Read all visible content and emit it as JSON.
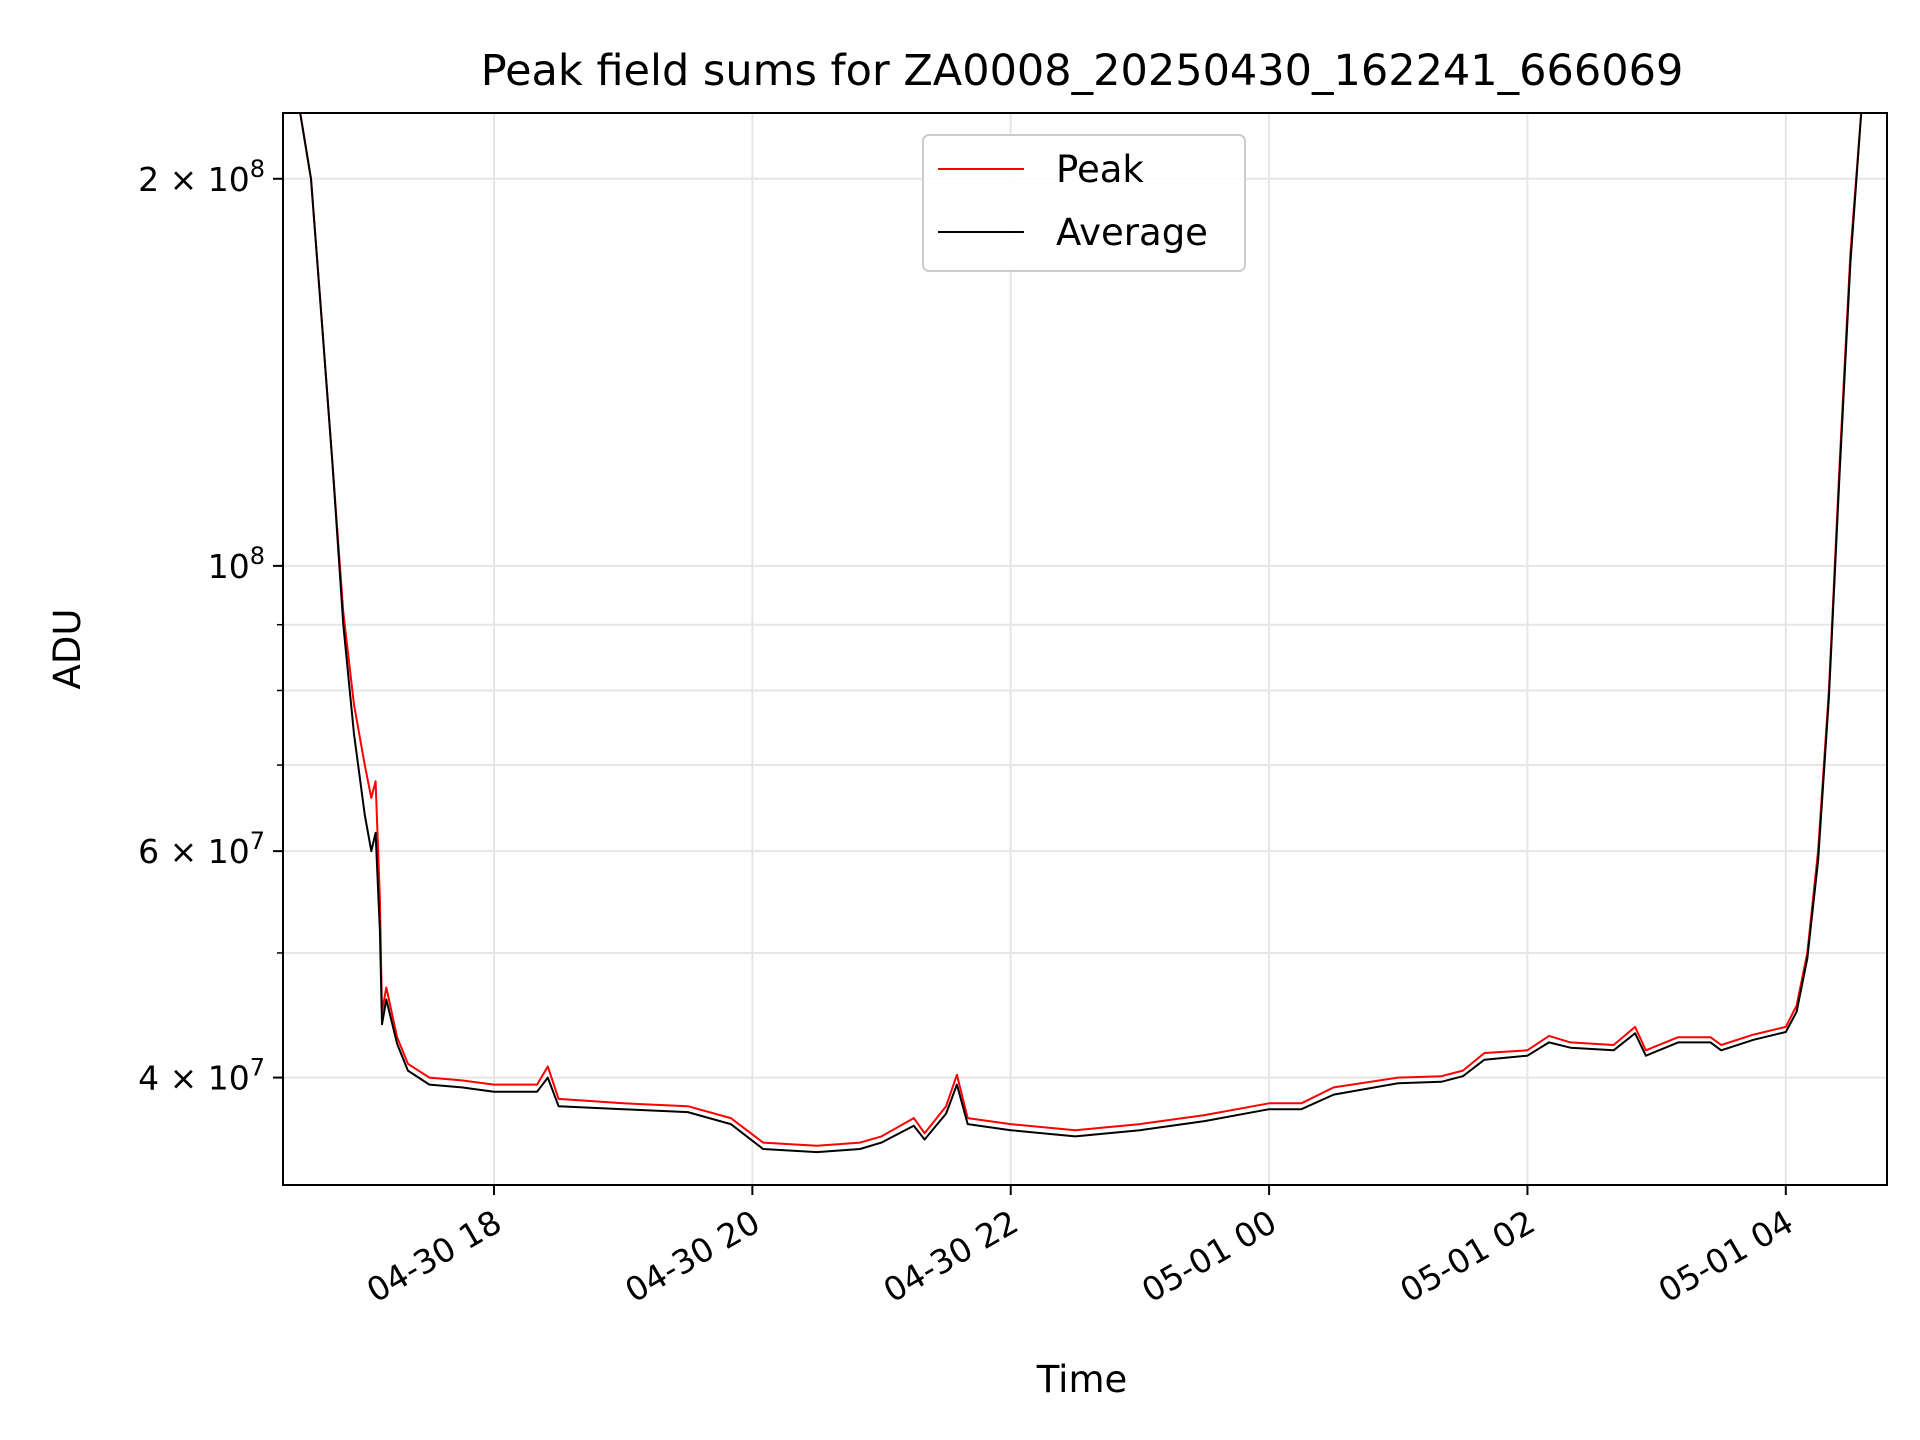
{
  "chart_data": {
    "type": "line",
    "title": "Peak field sums for ZA0008_20250430_162241_666069",
    "xlabel": "Time",
    "ylabel": "ADU",
    "yscale": "log",
    "ylim": [
      33000000,
      225000000
    ],
    "xlim": [
      "2025-04-30 16:22",
      "2025-05-01 04:47"
    ],
    "x_ticks": [
      {
        "t": "2025-04-30 18:00",
        "label": "04-30 18"
      },
      {
        "t": "2025-04-30 20:00",
        "label": "04-30 20"
      },
      {
        "t": "2025-04-30 22:00",
        "label": "04-30 22"
      },
      {
        "t": "2025-05-01 00:00",
        "label": "05-01 00"
      },
      {
        "t": "2025-05-01 02:00",
        "label": "05-01 02"
      },
      {
        "t": "2025-05-01 04:00",
        "label": "05-01 04"
      }
    ],
    "y_ticks": [
      {
        "value": 40000000,
        "mantissa": "4",
        "exp": "7"
      },
      {
        "value": 60000000,
        "mantissa": "6",
        "exp": "7"
      },
      {
        "value": 100000000,
        "mantissa": "",
        "exp": "8"
      },
      {
        "value": 200000000,
        "mantissa": "2",
        "exp": "8"
      }
    ],
    "y_minor_ticks": [
      50000000,
      70000000,
      80000000,
      90000000
    ],
    "grid": true,
    "legend_position": "top-center",
    "series": [
      {
        "name": "Peak",
        "color": "#ff0000",
        "points": [
          [
            "2025-04-30 16:22",
            225000000
          ],
          [
            "2025-04-30 16:30",
            225000000
          ],
          [
            "2025-04-30 16:35",
            200000000
          ],
          [
            "2025-04-30 16:40",
            155000000
          ],
          [
            "2025-04-30 16:45",
            120000000
          ],
          [
            "2025-04-30 16:50",
            92000000
          ],
          [
            "2025-04-30 16:55",
            78000000
          ],
          [
            "2025-04-30 17:00",
            70000000
          ],
          [
            "2025-04-30 17:03",
            66000000
          ],
          [
            "2025-04-30 17:05",
            68000000
          ],
          [
            "2025-04-30 17:07",
            55000000
          ],
          [
            "2025-04-30 17:08",
            45000000
          ],
          [
            "2025-04-30 17:10",
            47000000
          ],
          [
            "2025-04-30 17:15",
            43000000
          ],
          [
            "2025-04-30 17:20",
            41000000
          ],
          [
            "2025-04-30 17:30",
            40000000
          ],
          [
            "2025-04-30 17:45",
            39800000
          ],
          [
            "2025-04-30 18:00",
            39500000
          ],
          [
            "2025-04-30 18:20",
            39500000
          ],
          [
            "2025-04-30 18:25",
            40800000
          ],
          [
            "2025-04-30 18:30",
            38500000
          ],
          [
            "2025-04-30 19:00",
            38200000
          ],
          [
            "2025-04-30 19:30",
            38000000
          ],
          [
            "2025-04-30 19:50",
            37200000
          ],
          [
            "2025-04-30 20:05",
            35600000
          ],
          [
            "2025-04-30 20:30",
            35400000
          ],
          [
            "2025-04-30 20:50",
            35600000
          ],
          [
            "2025-04-30 21:00",
            36000000
          ],
          [
            "2025-04-30 21:15",
            37200000
          ],
          [
            "2025-04-30 21:20",
            36200000
          ],
          [
            "2025-04-30 21:30",
            38000000
          ],
          [
            "2025-04-30 21:35",
            40200000
          ],
          [
            "2025-04-30 21:40",
            37200000
          ],
          [
            "2025-04-30 22:00",
            36800000
          ],
          [
            "2025-04-30 22:30",
            36400000
          ],
          [
            "2025-04-30 23:00",
            36800000
          ],
          [
            "2025-04-30 23:30",
            37400000
          ],
          [
            "2025-05-01 00:00",
            38200000
          ],
          [
            "2025-05-01 00:15",
            38200000
          ],
          [
            "2025-05-01 00:30",
            39300000
          ],
          [
            "2025-05-01 01:00",
            40000000
          ],
          [
            "2025-05-01 01:20",
            40100000
          ],
          [
            "2025-05-01 01:30",
            40500000
          ],
          [
            "2025-05-01 01:40",
            41800000
          ],
          [
            "2025-05-01 02:00",
            42000000
          ],
          [
            "2025-05-01 02:10",
            43100000
          ],
          [
            "2025-05-01 02:20",
            42600000
          ],
          [
            "2025-05-01 02:40",
            42400000
          ],
          [
            "2025-05-01 02:50",
            43800000
          ],
          [
            "2025-05-01 02:55",
            42000000
          ],
          [
            "2025-05-01 03:10",
            43000000
          ],
          [
            "2025-05-01 03:25",
            43000000
          ],
          [
            "2025-05-01 03:30",
            42400000
          ],
          [
            "2025-05-01 03:45",
            43200000
          ],
          [
            "2025-05-01 04:00",
            43800000
          ],
          [
            "2025-05-01 04:05",
            45500000
          ],
          [
            "2025-05-01 04:10",
            50000000
          ],
          [
            "2025-05-01 04:15",
            60000000
          ],
          [
            "2025-05-01 04:20",
            80000000
          ],
          [
            "2025-05-01 04:25",
            120000000
          ],
          [
            "2025-05-01 04:30",
            175000000
          ],
          [
            "2025-05-01 04:35",
            225000000
          ],
          [
            "2025-05-01 04:47",
            225000000
          ]
        ]
      },
      {
        "name": "Average",
        "color": "#000000",
        "points": [
          [
            "2025-04-30 16:22",
            225000000
          ],
          [
            "2025-04-30 16:30",
            225000000
          ],
          [
            "2025-04-30 16:35",
            200000000
          ],
          [
            "2025-04-30 16:40",
            155000000
          ],
          [
            "2025-04-30 16:45",
            120000000
          ],
          [
            "2025-04-30 16:50",
            90000000
          ],
          [
            "2025-04-30 16:55",
            74000000
          ],
          [
            "2025-04-30 17:00",
            64000000
          ],
          [
            "2025-04-30 17:03",
            60000000
          ],
          [
            "2025-04-30 17:05",
            62000000
          ],
          [
            "2025-04-30 17:07",
            52000000
          ],
          [
            "2025-04-30 17:08",
            44000000
          ],
          [
            "2025-04-30 17:10",
            46000000
          ],
          [
            "2025-04-30 17:15",
            42500000
          ],
          [
            "2025-04-30 17:20",
            40500000
          ],
          [
            "2025-04-30 17:30",
            39500000
          ],
          [
            "2025-04-30 17:45",
            39300000
          ],
          [
            "2025-04-30 18:00",
            39000000
          ],
          [
            "2025-04-30 18:20",
            39000000
          ],
          [
            "2025-04-30 18:25",
            40000000
          ],
          [
            "2025-04-30 18:30",
            38000000
          ],
          [
            "2025-04-30 19:00",
            37800000
          ],
          [
            "2025-04-30 19:30",
            37600000
          ],
          [
            "2025-04-30 19:50",
            36800000
          ],
          [
            "2025-04-30 20:05",
            35200000
          ],
          [
            "2025-04-30 20:30",
            35000000
          ],
          [
            "2025-04-30 20:50",
            35200000
          ],
          [
            "2025-04-30 21:00",
            35600000
          ],
          [
            "2025-04-30 21:15",
            36700000
          ],
          [
            "2025-04-30 21:20",
            35800000
          ],
          [
            "2025-04-30 21:30",
            37500000
          ],
          [
            "2025-04-30 21:35",
            39500000
          ],
          [
            "2025-04-30 21:40",
            36800000
          ],
          [
            "2025-04-30 22:00",
            36400000
          ],
          [
            "2025-04-30 22:30",
            36000000
          ],
          [
            "2025-04-30 23:00",
            36400000
          ],
          [
            "2025-04-30 23:30",
            37000000
          ],
          [
            "2025-05-01 00:00",
            37800000
          ],
          [
            "2025-05-01 00:15",
            37800000
          ],
          [
            "2025-05-01 00:30",
            38800000
          ],
          [
            "2025-05-01 01:00",
            39600000
          ],
          [
            "2025-05-01 01:20",
            39700000
          ],
          [
            "2025-05-01 01:30",
            40100000
          ],
          [
            "2025-05-01 01:40",
            41300000
          ],
          [
            "2025-05-01 02:00",
            41600000
          ],
          [
            "2025-05-01 02:10",
            42600000
          ],
          [
            "2025-05-01 02:20",
            42200000
          ],
          [
            "2025-05-01 02:40",
            42000000
          ],
          [
            "2025-05-01 02:50",
            43300000
          ],
          [
            "2025-05-01 02:55",
            41600000
          ],
          [
            "2025-05-01 03:10",
            42600000
          ],
          [
            "2025-05-01 03:25",
            42600000
          ],
          [
            "2025-05-01 03:30",
            42000000
          ],
          [
            "2025-05-01 03:45",
            42800000
          ],
          [
            "2025-05-01 04:00",
            43400000
          ],
          [
            "2025-05-01 04:05",
            45000000
          ],
          [
            "2025-05-01 04:10",
            49500000
          ],
          [
            "2025-05-01 04:15",
            59000000
          ],
          [
            "2025-05-01 04:20",
            79000000
          ],
          [
            "2025-05-01 04:25",
            118000000
          ],
          [
            "2025-05-01 04:30",
            172000000
          ],
          [
            "2025-05-01 04:35",
            225000000
          ],
          [
            "2025-05-01 04:47",
            225000000
          ]
        ]
      }
    ]
  }
}
